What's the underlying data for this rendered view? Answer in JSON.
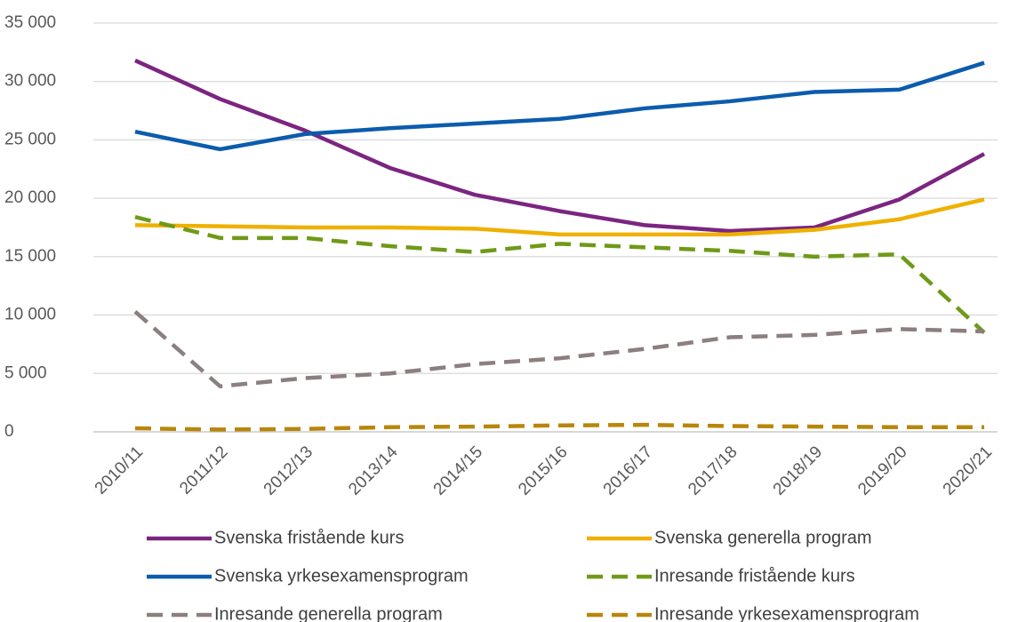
{
  "chart_data": {
    "type": "line",
    "categories": [
      "2010/11",
      "2011/12",
      "2012/13",
      "2013/14",
      "2014/15",
      "2015/16",
      "2016/17",
      "2017/18",
      "2018/19",
      "2019/20",
      "2020/21"
    ],
    "series": [
      {
        "name": "Svenska fristående kurs",
        "color": "#7b2580",
        "dashed": false,
        "values": [
          31800,
          28500,
          25800,
          22600,
          20300,
          18900,
          17700,
          17200,
          17500,
          19900,
          23800
        ]
      },
      {
        "name": "Svenska generella program",
        "color": "#f0b000",
        "dashed": false,
        "values": [
          17700,
          17600,
          17500,
          17500,
          17400,
          16900,
          16900,
          16900,
          17300,
          18200,
          19900
        ]
      },
      {
        "name": "Svenska yrkesexamensprogram",
        "color": "#0b5cad",
        "dashed": false,
        "values": [
          25700,
          24200,
          25500,
          26000,
          26400,
          26800,
          27700,
          28300,
          29100,
          29300,
          31600
        ]
      },
      {
        "name": "Inresande fristående kurs",
        "color": "#6f9a18",
        "dashed": true,
        "values": [
          18400,
          16600,
          16600,
          15900,
          15400,
          16100,
          15800,
          15500,
          15000,
          15200,
          8500
        ]
      },
      {
        "name": "Inresande generella program",
        "color": "#8c7f7f",
        "dashed": true,
        "values": [
          10300,
          3900,
          4600,
          5000,
          5800,
          6300,
          7100,
          8100,
          8300,
          8800,
          8600
        ]
      },
      {
        "name": "Inresande yrkesexamensprogram",
        "color": "#b8860b",
        "dashed": true,
        "values": [
          300,
          200,
          250,
          400,
          450,
          550,
          600,
          500,
          450,
          400,
          400
        ]
      }
    ],
    "ylim": [
      0,
      35000
    ],
    "yticks": [
      {
        "value": 0,
        "label": "0"
      },
      {
        "value": 5000,
        "label": "5 000"
      },
      {
        "value": 10000,
        "label": "10 000"
      },
      {
        "value": 15000,
        "label": "15 000"
      },
      {
        "value": 20000,
        "label": "20 000"
      },
      {
        "value": 25000,
        "label": "25 000"
      },
      {
        "value": 30000,
        "label": "30 000"
      },
      {
        "value": 35000,
        "label": "35 000"
      }
    ],
    "grid": true
  }
}
